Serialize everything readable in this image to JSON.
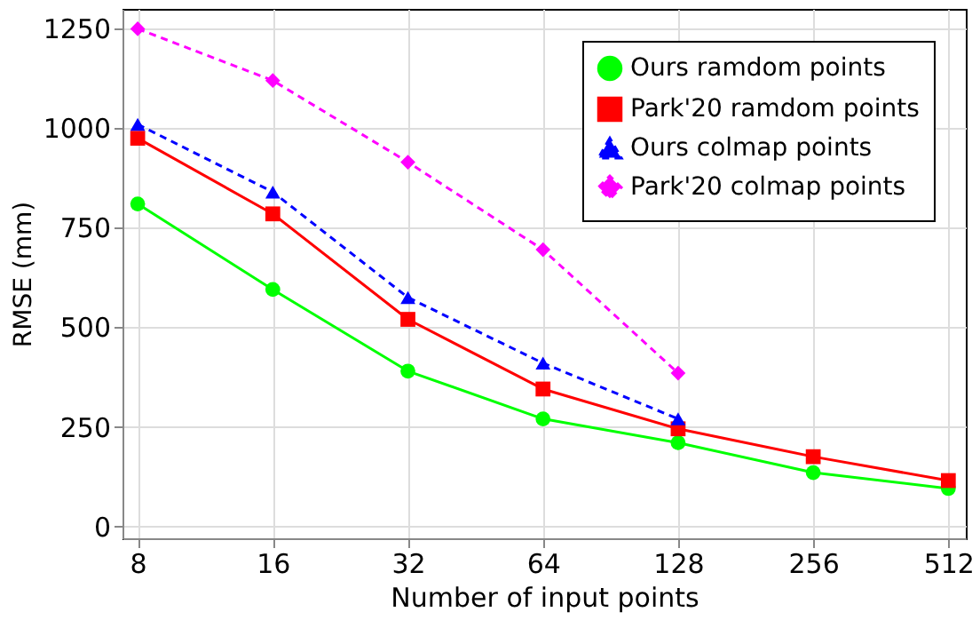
{
  "chart_data": {
    "type": "line",
    "xlabel": "Number of input points",
    "ylabel": "RMSE (mm)",
    "x": [
      8,
      16,
      32,
      64,
      128,
      256,
      512
    ],
    "xlim": [
      7.4,
      560
    ],
    "xticks": [
      8,
      16,
      32,
      64,
      128,
      256,
      512
    ],
    "ylim": [
      -30,
      1300
    ],
    "yticks": [
      0,
      250,
      500,
      750,
      1000,
      1250
    ],
    "grid": true,
    "legend": "top right",
    "log": "x",
    "series": [
      {
        "name": "Ours ramdom points",
        "color": "#00ff00",
        "marker": "circle",
        "line_style": "solid",
        "values": [
          810,
          595,
          390,
          270,
          210,
          135,
          95
        ]
      },
      {
        "name": "Park'20 ramdom points",
        "color": "#ff0000",
        "marker": "square",
        "line_style": "solid",
        "values": [
          975,
          785,
          520,
          345,
          245,
          175,
          115
        ]
      },
      {
        "name": "Ours colmap points",
        "color": "#0000ff",
        "marker": "triangle",
        "line_style": "dashed",
        "values": [
          1010,
          840,
          575,
          410,
          270,
          null,
          null
        ]
      },
      {
        "name": "Park'20 colmap points",
        "color": "#ff00ff",
        "marker": "diamond",
        "line_style": "dashed",
        "values": [
          1250,
          1120,
          915,
          695,
          385,
          null,
          null
        ]
      }
    ]
  }
}
